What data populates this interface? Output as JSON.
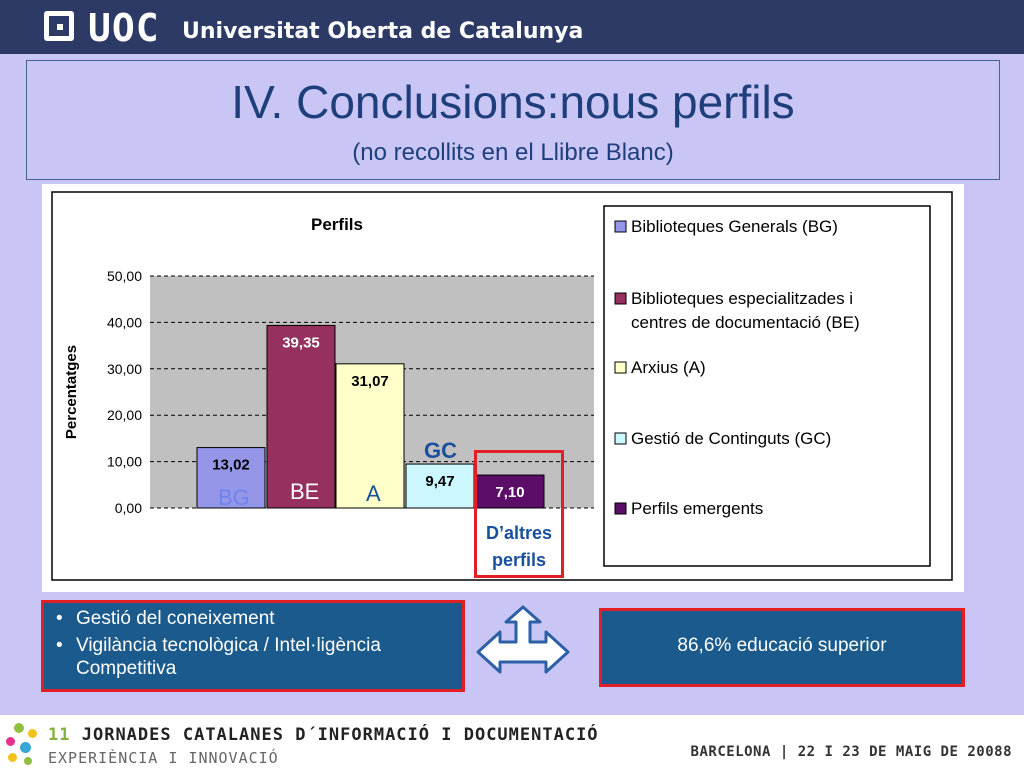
{
  "header": {
    "logo_mark": "UOC",
    "university": "Universitat Oberta de Catalunya"
  },
  "slide": {
    "title": "IV. Conclusions:nous perfils",
    "subtitle": "(no recollits en el Llibre Blanc)"
  },
  "chart_data": {
    "type": "bar",
    "title": "Perfils",
    "ylabel": "Percentatges",
    "ylim": [
      0,
      50
    ],
    "yticks": [
      "0,00",
      "10,00",
      "20,00",
      "30,00",
      "40,00",
      "50,00"
    ],
    "grid": true,
    "legend_position": "right",
    "categories": [
      "BG",
      "BE",
      "A",
      "GC",
      "Perfils emergents"
    ],
    "values": [
      13.02,
      39.35,
      31.07,
      9.47,
      7.1
    ],
    "value_labels": [
      "13,02",
      "39,35",
      "31,07",
      "9,47",
      "7,10"
    ],
    "colors": [
      "#9596e8",
      "#96315f",
      "#ffffc9",
      "#ccf7ff",
      "#5c0d68"
    ],
    "legend": [
      "Biblioteques Generals (BG)",
      "Biblioteques especialitzades i centres de documentació (BE)",
      "Arxius (A)",
      "Gestió de Continguts (GC)",
      "Perfils emergents"
    ]
  },
  "annotations": {
    "bg": "BG",
    "be": "BE",
    "a": "A",
    "gc": "GC",
    "other_line1": "D’altres",
    "other_line2": "perfils"
  },
  "left_box": {
    "items": [
      "Gestió del coneixement",
      "Vigilància tecnològica / Intel·ligència Competitiva"
    ]
  },
  "right_box": {
    "text": "86,6% educació superior"
  },
  "footer": {
    "edition": "11",
    "event": "JORNADES CATALANES D´INFORMACIÓ I DOCUMENTACIÓ",
    "tagline": "EXPERIÈNCIA I INNOVACIÓ",
    "place_date": "BARCELONA | 22 I 23 DE MAIG DE 2008",
    "page": "8"
  },
  "colors": {
    "header_bg": "#2e3a66",
    "slide_bg": "#c9c6f6",
    "title_text": "#1f3f7c",
    "box_bg": "#1b5a8c",
    "highlight": "#e21f26"
  }
}
